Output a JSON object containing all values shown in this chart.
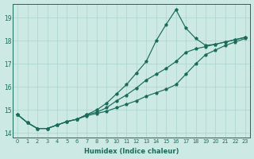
{
  "xlabel": "Humidex (Indice chaleur)",
  "ylabel": "",
  "xlim": [
    -0.5,
    23.5
  ],
  "ylim": [
    13.8,
    19.6
  ],
  "yticks": [
    14,
    15,
    16,
    17,
    18,
    19
  ],
  "xticks": [
    0,
    1,
    2,
    3,
    4,
    5,
    6,
    7,
    8,
    9,
    10,
    11,
    12,
    13,
    14,
    15,
    16,
    17,
    18,
    19,
    20,
    21,
    22,
    23
  ],
  "bg_color": "#cce9e4",
  "grid_color": "#aad4cc",
  "line_color": "#1a6b5a",
  "series": [
    [
      14.8,
      14.45,
      14.2,
      14.2,
      14.35,
      14.5,
      14.6,
      14.75,
      14.85,
      14.95,
      15.1,
      15.25,
      15.4,
      15.6,
      15.75,
      15.9,
      16.1,
      16.55,
      17.0,
      17.4,
      17.6,
      17.8,
      17.95,
      18.1
    ],
    [
      14.8,
      14.45,
      14.2,
      14.2,
      14.35,
      14.5,
      14.6,
      14.8,
      14.9,
      15.1,
      15.4,
      15.65,
      15.95,
      16.3,
      16.55,
      16.8,
      17.1,
      17.5,
      17.65,
      17.75,
      17.85,
      17.95,
      18.05,
      18.15
    ],
    [
      14.8,
      14.45,
      14.2,
      14.2,
      14.35,
      14.5,
      14.6,
      14.8,
      15.0,
      15.3,
      15.7,
      16.1,
      16.6,
      17.1,
      18.0,
      18.7,
      19.35,
      18.55,
      18.1,
      17.8,
      17.85,
      17.95,
      18.05,
      18.15
    ]
  ]
}
